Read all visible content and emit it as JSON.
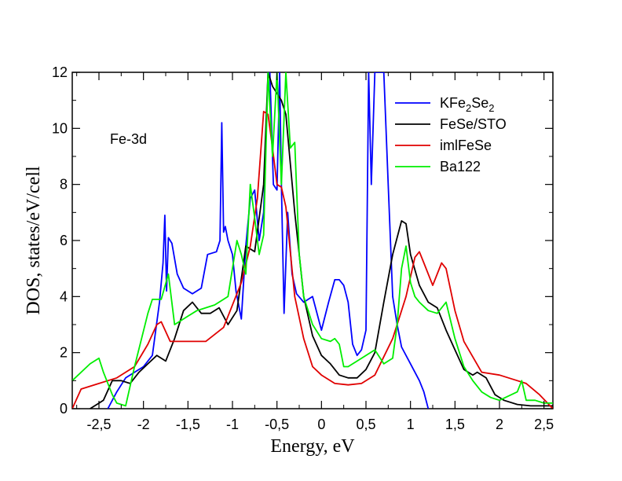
{
  "chart_data": {
    "type": "line",
    "title": "",
    "annotation": "Fe-3d",
    "xlabel": "Energy, eV",
    "ylabel": "DOS, states/eV/cell",
    "xlim": [
      -2.8,
      2.6
    ],
    "ylim": [
      0,
      12
    ],
    "x_ticks": [
      -2.5,
      -2,
      -1.5,
      -1,
      -0.5,
      0,
      0.5,
      1,
      1.5,
      2,
      2.5
    ],
    "x_tick_labels": [
      "-2,5",
      "-2",
      "-1,5",
      "-1",
      "-0,5",
      "0",
      "0,5",
      "1",
      "1,5",
      "2",
      "2,5"
    ],
    "y_ticks": [
      0,
      2,
      4,
      6,
      8,
      10,
      12
    ],
    "y_tick_labels": [
      "0",
      "2",
      "4",
      "6",
      "8",
      "10",
      "12"
    ],
    "legend_position": "top-right",
    "series": [
      {
        "name": "KFe2Se2",
        "legend_base": "KFe",
        "legend_sub1": "2",
        "legend_mid": "Se",
        "legend_sub2": "2",
        "color": "#0000ff",
        "points": [
          [
            -2.4,
            0
          ],
          [
            -2.3,
            0.6
          ],
          [
            -2.2,
            1.1
          ],
          [
            -2.0,
            1.5
          ],
          [
            -1.9,
            1.9
          ],
          [
            -1.82,
            3.8
          ],
          [
            -1.78,
            5.2
          ],
          [
            -1.76,
            6.9
          ],
          [
            -1.74,
            4.2
          ],
          [
            -1.72,
            6.1
          ],
          [
            -1.68,
            5.9
          ],
          [
            -1.62,
            4.8
          ],
          [
            -1.55,
            4.3
          ],
          [
            -1.45,
            4.1
          ],
          [
            -1.35,
            4.3
          ],
          [
            -1.28,
            5.5
          ],
          [
            -1.18,
            5.6
          ],
          [
            -1.14,
            6.0
          ],
          [
            -1.12,
            10.2
          ],
          [
            -1.1,
            6.3
          ],
          [
            -1.08,
            6.5
          ],
          [
            -1.05,
            6.0
          ],
          [
            -1.0,
            5.5
          ],
          [
            -0.96,
            4.2
          ],
          [
            -0.9,
            3.2
          ],
          [
            -0.85,
            5.8
          ],
          [
            -0.8,
            7.5
          ],
          [
            -0.75,
            7.8
          ],
          [
            -0.7,
            6.0
          ],
          [
            -0.65,
            7.0
          ],
          [
            -0.6,
            12.0
          ],
          [
            -0.58,
            12.0
          ],
          [
            -0.56,
            10.0
          ],
          [
            -0.54,
            8.0
          ],
          [
            -0.5,
            7.8
          ],
          [
            -0.47,
            12.0
          ],
          [
            -0.45,
            8.0
          ],
          [
            -0.42,
            3.4
          ],
          [
            -0.38,
            7.0
          ],
          [
            -0.33,
            4.8
          ],
          [
            -0.28,
            4.1
          ],
          [
            -0.2,
            3.8
          ],
          [
            -0.1,
            4.0
          ],
          [
            0.0,
            2.8
          ],
          [
            0.08,
            3.8
          ],
          [
            0.15,
            4.6
          ],
          [
            0.2,
            4.6
          ],
          [
            0.25,
            4.4
          ],
          [
            0.3,
            3.8
          ],
          [
            0.35,
            2.3
          ],
          [
            0.4,
            1.9
          ],
          [
            0.45,
            2.1
          ],
          [
            0.5,
            2.8
          ],
          [
            0.53,
            12.0
          ],
          [
            0.56,
            8.0
          ],
          [
            0.6,
            12.0
          ],
          [
            0.65,
            12.0
          ],
          [
            0.7,
            12.0
          ],
          [
            0.75,
            8.0
          ],
          [
            0.8,
            4.0
          ],
          [
            0.85,
            3.0
          ],
          [
            0.9,
            2.2
          ],
          [
            1.0,
            1.6
          ],
          [
            1.1,
            1.0
          ],
          [
            1.15,
            0.6
          ],
          [
            1.2,
            0
          ]
        ]
      },
      {
        "name": "FeSe/STO",
        "legend_base": "FeSe/STO",
        "color": "#000000",
        "points": [
          [
            -2.6,
            0
          ],
          [
            -2.45,
            0.3
          ],
          [
            -2.35,
            1.0
          ],
          [
            -2.25,
            1.0
          ],
          [
            -2.15,
            0.9
          ],
          [
            -2.05,
            1.3
          ],
          [
            -1.95,
            1.6
          ],
          [
            -1.85,
            1.9
          ],
          [
            -1.75,
            1.7
          ],
          [
            -1.65,
            2.5
          ],
          [
            -1.55,
            3.5
          ],
          [
            -1.45,
            3.8
          ],
          [
            -1.35,
            3.4
          ],
          [
            -1.25,
            3.4
          ],
          [
            -1.15,
            3.6
          ],
          [
            -1.05,
            3.0
          ],
          [
            -0.95,
            3.5
          ],
          [
            -0.85,
            5.8
          ],
          [
            -0.75,
            5.6
          ],
          [
            -0.65,
            8.0
          ],
          [
            -0.6,
            12.0
          ],
          [
            -0.55,
            11.5
          ],
          [
            -0.45,
            11.0
          ],
          [
            -0.4,
            10.5
          ],
          [
            -0.3,
            7.0
          ],
          [
            -0.2,
            4.0
          ],
          [
            -0.1,
            2.6
          ],
          [
            0.0,
            1.9
          ],
          [
            0.1,
            1.6
          ],
          [
            0.2,
            1.2
          ],
          [
            0.3,
            1.1
          ],
          [
            0.4,
            1.1
          ],
          [
            0.5,
            1.4
          ],
          [
            0.6,
            2.0
          ],
          [
            0.7,
            3.8
          ],
          [
            0.8,
            5.5
          ],
          [
            0.9,
            6.7
          ],
          [
            0.95,
            6.6
          ],
          [
            1.0,
            5.5
          ],
          [
            1.1,
            4.4
          ],
          [
            1.2,
            3.8
          ],
          [
            1.3,
            3.6
          ],
          [
            1.4,
            2.8
          ],
          [
            1.5,
            2.1
          ],
          [
            1.6,
            1.4
          ],
          [
            1.7,
            1.2
          ],
          [
            1.75,
            1.3
          ],
          [
            1.85,
            1.1
          ],
          [
            1.95,
            0.5
          ],
          [
            2.05,
            0.3
          ],
          [
            2.2,
            0.15
          ],
          [
            2.35,
            0.1
          ],
          [
            2.5,
            0.1
          ],
          [
            2.6,
            0.1
          ]
        ]
      },
      {
        "name": "imlFeSe",
        "legend_base": "imlFeSe",
        "color": "#e00000",
        "points": [
          [
            -2.8,
            0
          ],
          [
            -2.7,
            0.7
          ],
          [
            -2.5,
            0.9
          ],
          [
            -2.3,
            1.1
          ],
          [
            -2.1,
            1.5
          ],
          [
            -1.95,
            2.3
          ],
          [
            -1.85,
            3.0
          ],
          [
            -1.8,
            3.1
          ],
          [
            -1.7,
            2.4
          ],
          [
            -1.5,
            2.4
          ],
          [
            -1.3,
            2.4
          ],
          [
            -1.1,
            2.9
          ],
          [
            -0.9,
            4.5
          ],
          [
            -0.8,
            5.8
          ],
          [
            -0.72,
            7.5
          ],
          [
            -0.65,
            10.6
          ],
          [
            -0.6,
            10.5
          ],
          [
            -0.55,
            9.3
          ],
          [
            -0.5,
            8.0
          ],
          [
            -0.45,
            7.9
          ],
          [
            -0.4,
            7.2
          ],
          [
            -0.3,
            4.0
          ],
          [
            -0.2,
            2.5
          ],
          [
            -0.1,
            1.5
          ],
          [
            0.0,
            1.2
          ],
          [
            0.15,
            0.9
          ],
          [
            0.3,
            0.85
          ],
          [
            0.45,
            0.9
          ],
          [
            0.6,
            1.2
          ],
          [
            0.8,
            2.5
          ],
          [
            0.95,
            4.0
          ],
          [
            1.05,
            5.4
          ],
          [
            1.1,
            5.6
          ],
          [
            1.15,
            5.2
          ],
          [
            1.25,
            4.4
          ],
          [
            1.35,
            5.2
          ],
          [
            1.4,
            5.0
          ],
          [
            1.5,
            3.5
          ],
          [
            1.6,
            2.4
          ],
          [
            1.8,
            1.3
          ],
          [
            2.0,
            1.2
          ],
          [
            2.2,
            1.0
          ],
          [
            2.3,
            0.9
          ],
          [
            2.45,
            0.5
          ],
          [
            2.6,
            0
          ]
        ]
      },
      {
        "name": "Ba122",
        "legend_base": "Ba122",
        "color": "#00ee00",
        "points": [
          [
            -2.8,
            1.0
          ],
          [
            -2.7,
            1.3
          ],
          [
            -2.6,
            1.6
          ],
          [
            -2.5,
            1.8
          ],
          [
            -2.45,
            1.3
          ],
          [
            -2.35,
            0.5
          ],
          [
            -2.3,
            0.2
          ],
          [
            -2.2,
            0.1
          ],
          [
            -2.1,
            1.5
          ],
          [
            -1.95,
            3.4
          ],
          [
            -1.9,
            3.9
          ],
          [
            -1.8,
            3.9
          ],
          [
            -1.72,
            4.8
          ],
          [
            -1.65,
            3.0
          ],
          [
            -1.5,
            3.3
          ],
          [
            -1.4,
            3.5
          ],
          [
            -1.3,
            3.6
          ],
          [
            -1.2,
            3.7
          ],
          [
            -1.05,
            4.0
          ],
          [
            -1.0,
            5.0
          ],
          [
            -0.95,
            6.0
          ],
          [
            -0.9,
            5.5
          ],
          [
            -0.85,
            4.8
          ],
          [
            -0.8,
            8.0
          ],
          [
            -0.75,
            6.8
          ],
          [
            -0.7,
            5.5
          ],
          [
            -0.65,
            6.2
          ],
          [
            -0.6,
            12.0
          ],
          [
            -0.55,
            9.0
          ],
          [
            -0.5,
            12.0
          ],
          [
            -0.45,
            8.0
          ],
          [
            -0.4,
            12.0
          ],
          [
            -0.35,
            9.3
          ],
          [
            -0.3,
            9.5
          ],
          [
            -0.25,
            5.5
          ],
          [
            -0.2,
            4.0
          ],
          [
            -0.1,
            3.0
          ],
          [
            0.0,
            2.5
          ],
          [
            0.1,
            2.4
          ],
          [
            0.15,
            2.5
          ],
          [
            0.2,
            2.3
          ],
          [
            0.25,
            1.5
          ],
          [
            0.3,
            1.5
          ],
          [
            0.4,
            1.7
          ],
          [
            0.5,
            1.9
          ],
          [
            0.6,
            2.1
          ],
          [
            0.7,
            1.6
          ],
          [
            0.8,
            1.8
          ],
          [
            0.85,
            3.0
          ],
          [
            0.9,
            5.0
          ],
          [
            0.95,
            5.8
          ],
          [
            1.0,
            4.5
          ],
          [
            1.05,
            4.0
          ],
          [
            1.1,
            3.8
          ],
          [
            1.2,
            3.5
          ],
          [
            1.3,
            3.4
          ],
          [
            1.4,
            3.8
          ],
          [
            1.5,
            2.5
          ],
          [
            1.6,
            1.5
          ],
          [
            1.7,
            1.0
          ],
          [
            1.8,
            0.6
          ],
          [
            1.9,
            0.4
          ],
          [
            2.0,
            0.3
          ],
          [
            2.2,
            0.6
          ],
          [
            2.25,
            1.0
          ],
          [
            2.3,
            0.3
          ],
          [
            2.4,
            0.3
          ],
          [
            2.5,
            0.2
          ],
          [
            2.6,
            0.2
          ]
        ]
      }
    ]
  }
}
